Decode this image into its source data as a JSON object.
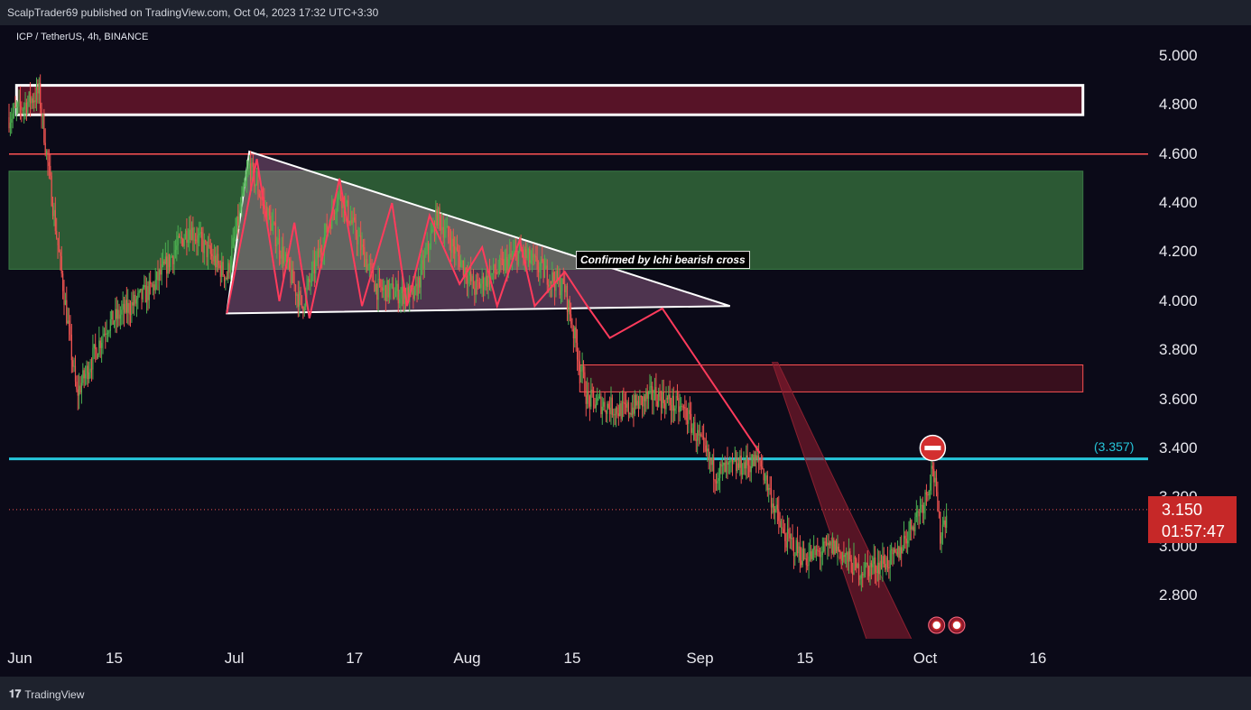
{
  "header": {
    "publisher_text": "ScalpTrader69 published on TradingView.com, Oct 04, 2023 17:32 UTC+3:30"
  },
  "symbol": {
    "info": "ICP / TetherUS, 4h, BINANCE"
  },
  "annotations": {
    "confirm_text": "Confirmed by Ichi bearish cross",
    "level_label": "(3.357)"
  },
  "current": {
    "price": "3.150",
    "countdown": "01:57:47"
  },
  "footer": {
    "brand": "TradingView"
  },
  "colors": {
    "background": "#0b0a18",
    "up_candle": "#4caf50",
    "down_candle": "#ef5350",
    "level_line": "#26c6da",
    "red_line": "#ff5252",
    "zone_green": "#2e5e36",
    "zone_maroon": "#5c1428"
  },
  "chart_data": {
    "type": "candlestick",
    "title": "ICP / TetherUS, 4h, BINANCE",
    "xlabel": "",
    "ylabel": "",
    "ylim": [
      2.62,
      5.1
    ],
    "grid": false,
    "y_ticks": [
      "5.000",
      "4.800",
      "4.600",
      "4.400",
      "4.200",
      "4.000",
      "3.800",
      "3.600",
      "3.400",
      "3.200",
      "3.000",
      "2.800"
    ],
    "x_tick_labels": [
      "Jun",
      "15",
      "Jul",
      "17",
      "Aug",
      "15",
      "Sep",
      "15",
      "Oct",
      "16"
    ],
    "price_path": [
      {
        "date": "2023-06-01",
        "price": 4.75
      },
      {
        "date": "2023-06-05",
        "price": 4.85
      },
      {
        "date": "2023-06-07",
        "price": 4.35
      },
      {
        "date": "2023-06-10",
        "price": 3.62
      },
      {
        "date": "2023-06-14",
        "price": 3.9
      },
      {
        "date": "2023-06-20",
        "price": 4.05
      },
      {
        "date": "2023-06-25",
        "price": 4.3
      },
      {
        "date": "2023-06-30",
        "price": 4.1
      },
      {
        "date": "2023-07-03",
        "price": 4.55
      },
      {
        "date": "2023-07-10",
        "price": 3.98
      },
      {
        "date": "2023-07-15",
        "price": 4.45
      },
      {
        "date": "2023-07-20",
        "price": 4.05
      },
      {
        "date": "2023-07-25",
        "price": 4.02
      },
      {
        "date": "2023-07-28",
        "price": 4.35
      },
      {
        "date": "2023-08-02",
        "price": 4.05
      },
      {
        "date": "2023-08-08",
        "price": 4.2
      },
      {
        "date": "2023-08-14",
        "price": 4.05
      },
      {
        "date": "2023-08-17",
        "price": 3.6
      },
      {
        "date": "2023-08-22",
        "price": 3.55
      },
      {
        "date": "2023-08-26",
        "price": 3.62
      },
      {
        "date": "2023-08-30",
        "price": 3.55
      },
      {
        "date": "2023-09-03",
        "price": 3.3
      },
      {
        "date": "2023-09-09",
        "price": 3.35
      },
      {
        "date": "2023-09-12",
        "price": 3.05
      },
      {
        "date": "2023-09-15",
        "price": 2.95
      },
      {
        "date": "2023-09-19",
        "price": 3.0
      },
      {
        "date": "2023-09-22",
        "price": 2.9
      },
      {
        "date": "2023-09-27",
        "price": 2.95
      },
      {
        "date": "2023-10-01",
        "price": 3.2
      },
      {
        "date": "2023-10-02",
        "price": 3.33
      },
      {
        "date": "2023-10-03",
        "price": 3.05
      },
      {
        "date": "2023-10-04",
        "price": 3.15
      }
    ],
    "horizontal_levels": [
      {
        "name": "cyan-level",
        "price": 3.357,
        "label": "(3.357)"
      },
      {
        "name": "red-level",
        "price": 4.6
      }
    ],
    "zones": [
      {
        "name": "top-supply-zone",
        "from_date": "2023-06-02",
        "to_date": "2023-10-22",
        "low": 4.76,
        "high": 4.88
      },
      {
        "name": "green-zone",
        "from_date": "2023-06-01",
        "to_date": "2023-10-22",
        "low": 4.13,
        "high": 4.53
      },
      {
        "name": "lower-supply-zone",
        "from_date": "2023-08-16",
        "to_date": "2023-10-22",
        "low": 3.63,
        "high": 3.74
      }
    ],
    "triangle": [
      {
        "date": "2023-06-30",
        "price": 3.95
      },
      {
        "date": "2023-07-03",
        "price": 4.61
      },
      {
        "date": "2023-09-05",
        "price": 3.98
      }
    ],
    "zigzag": [
      {
        "date": "2023-06-30",
        "price": 3.95
      },
      {
        "date": "2023-07-04",
        "price": 4.58
      },
      {
        "date": "2023-07-07",
        "price": 4.0
      },
      {
        "date": "2023-07-09",
        "price": 4.32
      },
      {
        "date": "2023-07-11",
        "price": 3.93
      },
      {
        "date": "2023-07-15",
        "price": 4.5
      },
      {
        "date": "2023-07-18",
        "price": 3.98
      },
      {
        "date": "2023-07-22",
        "price": 4.4
      },
      {
        "date": "2023-07-24",
        "price": 3.98
      },
      {
        "date": "2023-07-27",
        "price": 4.35
      },
      {
        "date": "2023-07-31",
        "price": 4.07
      },
      {
        "date": "2023-08-03",
        "price": 4.22
      },
      {
        "date": "2023-08-05",
        "price": 3.98
      },
      {
        "date": "2023-08-08",
        "price": 4.25
      },
      {
        "date": "2023-08-10",
        "price": 3.98
      },
      {
        "date": "2023-08-14",
        "price": 4.12
      },
      {
        "date": "2023-08-17",
        "price": 3.98
      },
      {
        "date": "2023-08-20",
        "price": 3.85
      },
      {
        "date": "2023-08-27",
        "price": 3.97
      },
      {
        "date": "2023-09-09",
        "price": 3.38
      }
    ],
    "projection_wedge": [
      {
        "date": "2023-09-11",
        "price": 3.75
      },
      {
        "date": "2023-09-28",
        "price": 2.62
      }
    ]
  }
}
